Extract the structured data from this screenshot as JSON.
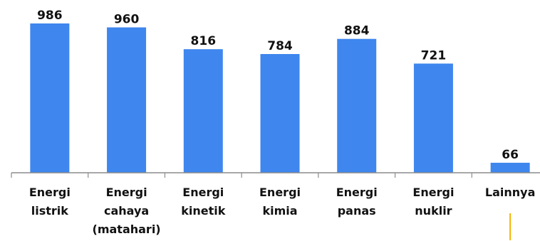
{
  "chart_data": {
    "type": "bar",
    "categories": [
      [
        "Energi",
        "listrik"
      ],
      [
        "Energi",
        "cahaya",
        "(matahari)"
      ],
      [
        "Energi",
        "kinetik"
      ],
      [
        "Energi",
        "kimia"
      ],
      [
        "Energi",
        "panas"
      ],
      [
        "Energi",
        "nuklir"
      ],
      [
        "Lainnya"
      ]
    ],
    "values": [
      986,
      960,
      816,
      784,
      884,
      721,
      66
    ],
    "ylim": [
      0,
      1000
    ],
    "grid": false,
    "legend": "none",
    "bar_color": "#3f86ee",
    "accent_color": "#f5b400"
  }
}
